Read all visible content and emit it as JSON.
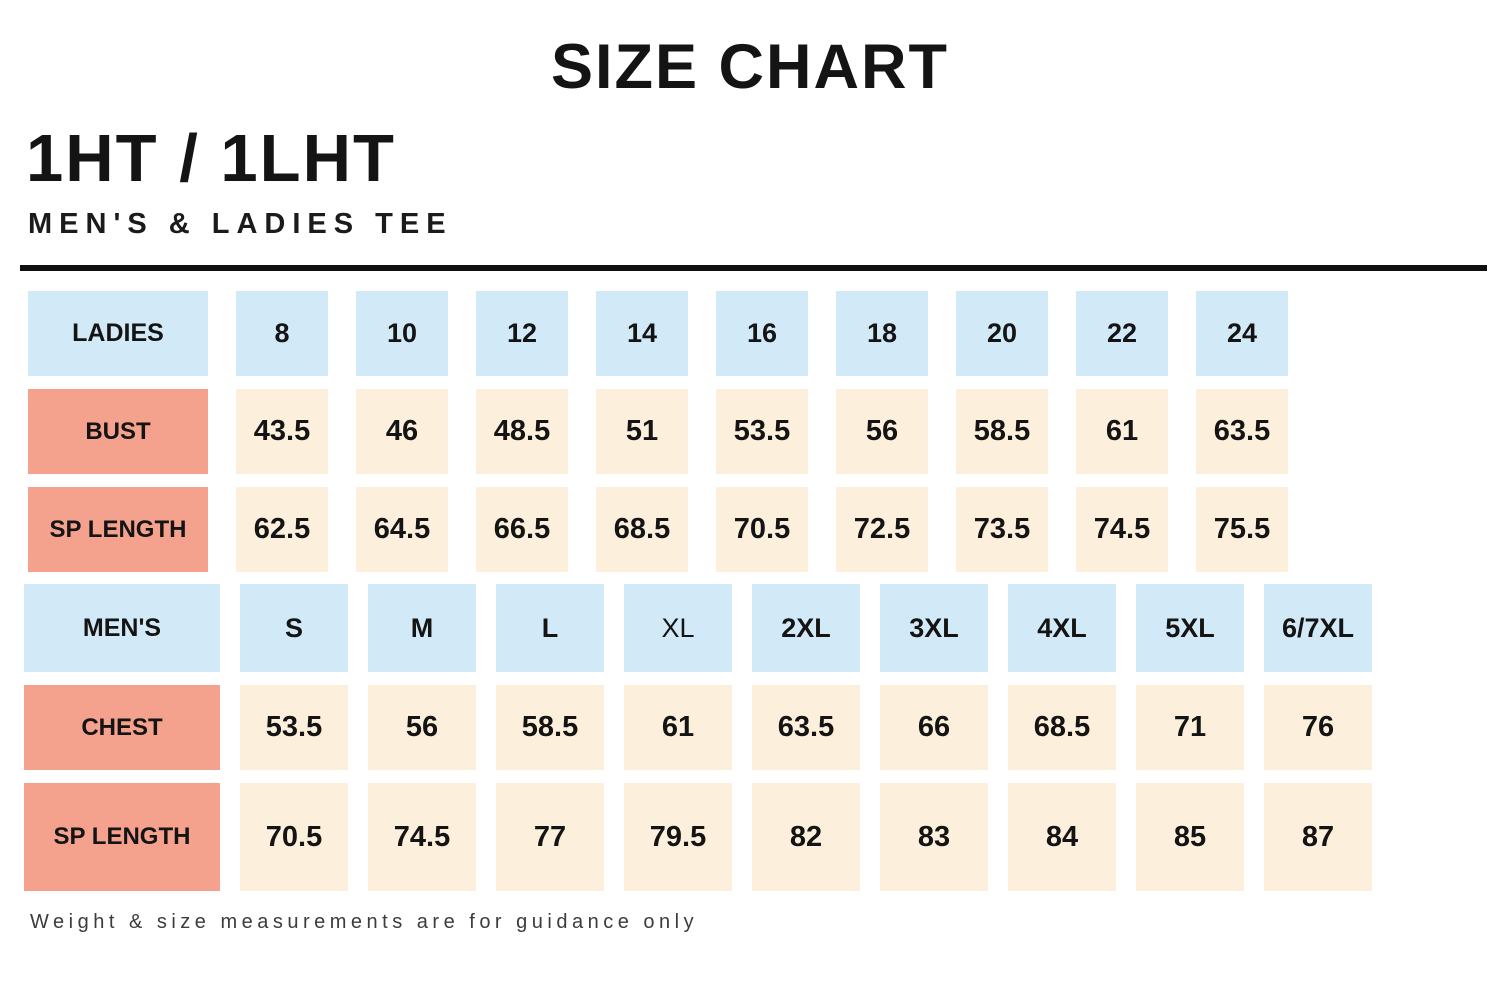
{
  "page": {
    "title": "SIZE CHART",
    "model": "1HT / 1LHT",
    "subtitle": "MEN'S & LADIES TEE",
    "footnote": "Weight & size measurements are for guidance only"
  },
  "colors": {
    "size_header_bg": "#d2e9f7",
    "measure_label_bg": "#f4a28e",
    "value_bg": "#fcf0dd",
    "divider": "#101010",
    "text": "#141414"
  },
  "chart_data": {
    "type": "table",
    "title": "SIZE CHART",
    "tables": [
      {
        "name": "ladies",
        "header_label": "LADIES",
        "sizes": [
          "8",
          "10",
          "12",
          "14",
          "16",
          "18",
          "20",
          "22",
          "24"
        ],
        "regular_weight_sizes": [],
        "rows": [
          {
            "label": "BUST",
            "values": [
              "43.5",
              "46",
              "48.5",
              "51",
              "53.5",
              "56",
              "58.5",
              "61",
              "63.5"
            ]
          },
          {
            "label": "SP LENGTH",
            "values": [
              "62.5",
              "64.5",
              "66.5",
              "68.5",
              "70.5",
              "72.5",
              "73.5",
              "74.5",
              "75.5"
            ]
          }
        ]
      },
      {
        "name": "mens",
        "header_label": "MEN'S",
        "sizes": [
          "S",
          "M",
          "L",
          "XL",
          "2XL",
          "3XL",
          "4XL",
          "5XL",
          "6/7XL"
        ],
        "regular_weight_sizes": [
          "XL"
        ],
        "rows": [
          {
            "label": "CHEST",
            "values": [
              "53.5",
              "56",
              "58.5",
              "61",
              "63.5",
              "66",
              "68.5",
              "71",
              "76"
            ]
          },
          {
            "label": "SP LENGTH",
            "values": [
              "70.5",
              "74.5",
              "77",
              "79.5",
              "82",
              "83",
              "84",
              "85",
              "87"
            ]
          }
        ]
      }
    ]
  }
}
